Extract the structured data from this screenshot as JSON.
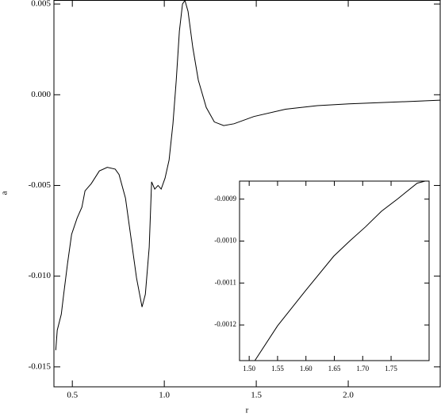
{
  "chart_data": [
    {
      "type": "line",
      "xlabel": "r",
      "ylabel": "a",
      "color": "#000000",
      "x": [
        0.41,
        0.418,
        0.44,
        0.453,
        0.474,
        0.496,
        0.526,
        0.552,
        0.569,
        0.603,
        0.647,
        0.69,
        0.733,
        0.754,
        0.789,
        0.819,
        0.849,
        0.879,
        0.897,
        0.918,
        0.931,
        0.948,
        0.966,
        0.983,
        1.004,
        1.026,
        1.047,
        1.065,
        1.082,
        1.099,
        1.112,
        1.129,
        1.155,
        1.185,
        1.228,
        1.272,
        1.323,
        1.379,
        1.487,
        1.659,
        1.832,
        2.004,
        2.263,
        2.504
      ],
      "values": [
        -0.01408,
        -0.01298,
        -0.0121,
        -0.011,
        -0.0093,
        -0.0077,
        -0.0068,
        -0.0062,
        -0.0053,
        -0.0049,
        -0.0042,
        -0.004,
        -0.0041,
        -0.0044,
        -0.0057,
        -0.0079,
        -0.0101,
        -0.0117,
        -0.011,
        -0.0084,
        -0.0048,
        -0.0052,
        -0.005,
        -0.0052,
        -0.0046,
        -0.0036,
        -0.0016,
        0.0008,
        0.0035,
        0.005,
        0.0052,
        0.0046,
        0.0026,
        0.0008,
        -0.0007,
        -0.0015,
        -0.0017,
        -0.0016,
        -0.0012,
        -0.0008,
        -0.0006,
        -0.0005,
        -0.0004,
        -0.0003
      ],
      "xlim": [
        0.4,
        2.5
      ],
      "ylim": [
        -0.0161,
        0.0052
      ],
      "xticks": [
        0.5,
        {
          "value": 1.0,
          "label": "1.0"
        },
        1.5,
        {
          "value": 2.0,
          "label": "2.0"
        }
      ],
      "yticks": [
        {
          "value": -0.015,
          "label": "-0.015"
        },
        {
          "value": -0.01,
          "label": "-0.010"
        },
        {
          "value": -0.005,
          "label": "-0.005"
        },
        {
          "value": 0,
          "label": "0.000"
        },
        0.005
      ]
    },
    {
      "type": "line",
      "color": "#000000",
      "x": [
        1.51,
        1.55,
        1.6,
        1.649,
        1.677,
        1.705,
        1.733,
        1.761,
        1.796,
        1.81
      ],
      "values": [
        -0.001285,
        -0.001202,
        -0.001117,
        -0.001036,
        -0.001,
        -0.000966,
        -0.000929,
        -0.0009,
        -0.000862,
        -0.000857
      ],
      "xlim": [
        1.483,
        1.817
      ],
      "ylim": [
        -0.001285,
        -0.000857
      ],
      "xticks": [
        {
          "value": 1.5,
          "label": "1.50"
        },
        1.55,
        {
          "value": 1.6,
          "label": "1.60"
        },
        1.65,
        {
          "value": 1.7,
          "label": "1.70"
        },
        1.75
      ],
      "yticks": [
        {
          "value": -0.0012,
          "label": "-0.0012"
        },
        -0.0011,
        {
          "value": -0.001,
          "label": "-0.0010"
        },
        -0.0009
      ]
    }
  ]
}
